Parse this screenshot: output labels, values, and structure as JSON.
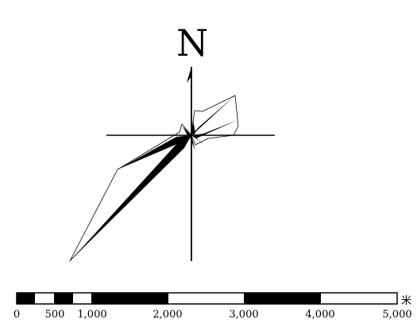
{
  "north_arrow": {
    "label": "N"
  },
  "scale_bar": {
    "tick_labels": [
      "0",
      "500",
      "1,000",
      "2,000",
      "3,000",
      "4,000",
      "5,000"
    ],
    "unit": "米"
  },
  "wind_rose": {
    "fill_color": "#000000",
    "line_color": "#000000"
  }
}
